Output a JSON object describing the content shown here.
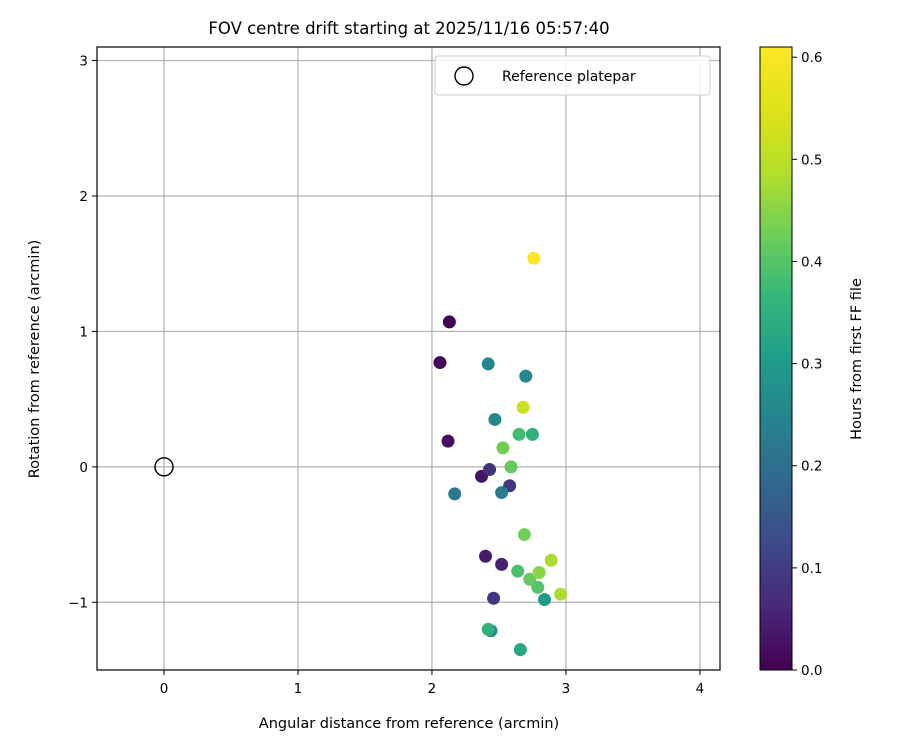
{
  "chart_data": {
    "type": "scatter",
    "title": "FOV centre drift starting at 2025/11/16 05:57:40",
    "xlabel": "Angular distance from reference (arcmin)",
    "ylabel": "Rotation from reference (arcmin)",
    "xlim": [
      -0.5,
      4.15
    ],
    "ylim": [
      -1.5,
      3.1
    ],
    "xticks": [
      0,
      1,
      2,
      3,
      4
    ],
    "xtick_labels": [
      "0",
      "1",
      "2",
      "3",
      "4"
    ],
    "yticks": [
      -1,
      0,
      1,
      2,
      3
    ],
    "ytick_labels": [
      "−1",
      "0",
      "1",
      "2",
      "3"
    ],
    "grid": true,
    "legend": {
      "placement": "top-right",
      "label": "Reference platepar"
    },
    "reference": {
      "x": 0,
      "y": 0,
      "marker": "open-circle"
    },
    "colorbar": {
      "label": "Hours from first FF file",
      "colormap": "viridis",
      "range": [
        0.0,
        0.61
      ],
      "ticks": [
        0.0,
        0.1,
        0.2,
        0.3,
        0.4,
        0.5,
        0.6
      ],
      "tick_labels": [
        "0.0",
        "0.1",
        "0.2",
        "0.3",
        "0.4",
        "0.5",
        "0.6"
      ]
    },
    "points": [
      {
        "x": 2.13,
        "y": 1.07,
        "c": 0.0
      },
      {
        "x": 2.06,
        "y": 0.77,
        "c": 0.01
      },
      {
        "x": 2.12,
        "y": 0.19,
        "c": 0.02
      },
      {
        "x": 2.37,
        "y": -0.07,
        "c": 0.03
      },
      {
        "x": 2.4,
        "y": -0.66,
        "c": 0.04
      },
      {
        "x": 2.52,
        "y": -0.72,
        "c": 0.05
      },
      {
        "x": 2.43,
        "y": -0.02,
        "c": 0.08
      },
      {
        "x": 2.58,
        "y": -0.14,
        "c": 0.09
      },
      {
        "x": 2.46,
        "y": -0.97,
        "c": 0.09
      },
      {
        "x": 2.17,
        "y": -0.2,
        "c": 0.22
      },
      {
        "x": 2.42,
        "y": 0.76,
        "c": 0.25
      },
      {
        "x": 2.52,
        "y": -0.19,
        "c": 0.23
      },
      {
        "x": 2.7,
        "y": 0.67,
        "c": 0.26
      },
      {
        "x": 2.47,
        "y": 0.35,
        "c": 0.26
      },
      {
        "x": 2.44,
        "y": -1.21,
        "c": 0.25
      },
      {
        "x": 2.84,
        "y": -0.98,
        "c": 0.3
      },
      {
        "x": 2.66,
        "y": -1.35,
        "c": 0.33
      },
      {
        "x": 2.42,
        "y": -1.2,
        "c": 0.35
      },
      {
        "x": 2.75,
        "y": 0.24,
        "c": 0.35
      },
      {
        "x": 2.65,
        "y": 0.24,
        "c": 0.38
      },
      {
        "x": 2.64,
        "y": -0.77,
        "c": 0.39
      },
      {
        "x": 2.79,
        "y": -0.89,
        "c": 0.4
      },
      {
        "x": 2.73,
        "y": -0.83,
        "c": 0.42
      },
      {
        "x": 2.59,
        "y": 0.0,
        "c": 0.42
      },
      {
        "x": 2.53,
        "y": 0.14,
        "c": 0.43
      },
      {
        "x": 2.69,
        "y": -0.5,
        "c": 0.43
      },
      {
        "x": 2.8,
        "y": -0.78,
        "c": 0.45
      },
      {
        "x": 2.96,
        "y": -0.94,
        "c": 0.48
      },
      {
        "x": 2.89,
        "y": -0.69,
        "c": 0.48
      },
      {
        "x": 2.68,
        "y": 0.44,
        "c": 0.52
      },
      {
        "x": 2.76,
        "y": 1.54,
        "c": 0.61
      }
    ]
  }
}
